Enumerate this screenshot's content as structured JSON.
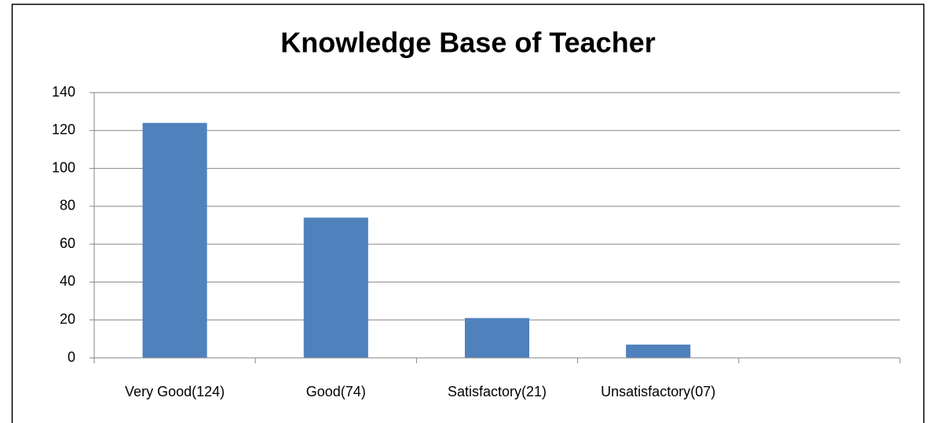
{
  "chart_data": {
    "type": "bar",
    "title": "Knowledge Base of Teacher",
    "categories": [
      "Very Good(124)",
      "Good(74)",
      "Satisfactory(21)",
      "Unsatisfactory(07)",
      null
    ],
    "values": [
      124,
      74,
      21,
      7,
      null
    ],
    "color": "#4f81bd",
    "ylim": [
      0,
      140
    ],
    "yticks": [
      0,
      20,
      40,
      60,
      80,
      100,
      120,
      140
    ],
    "grid": true
  }
}
